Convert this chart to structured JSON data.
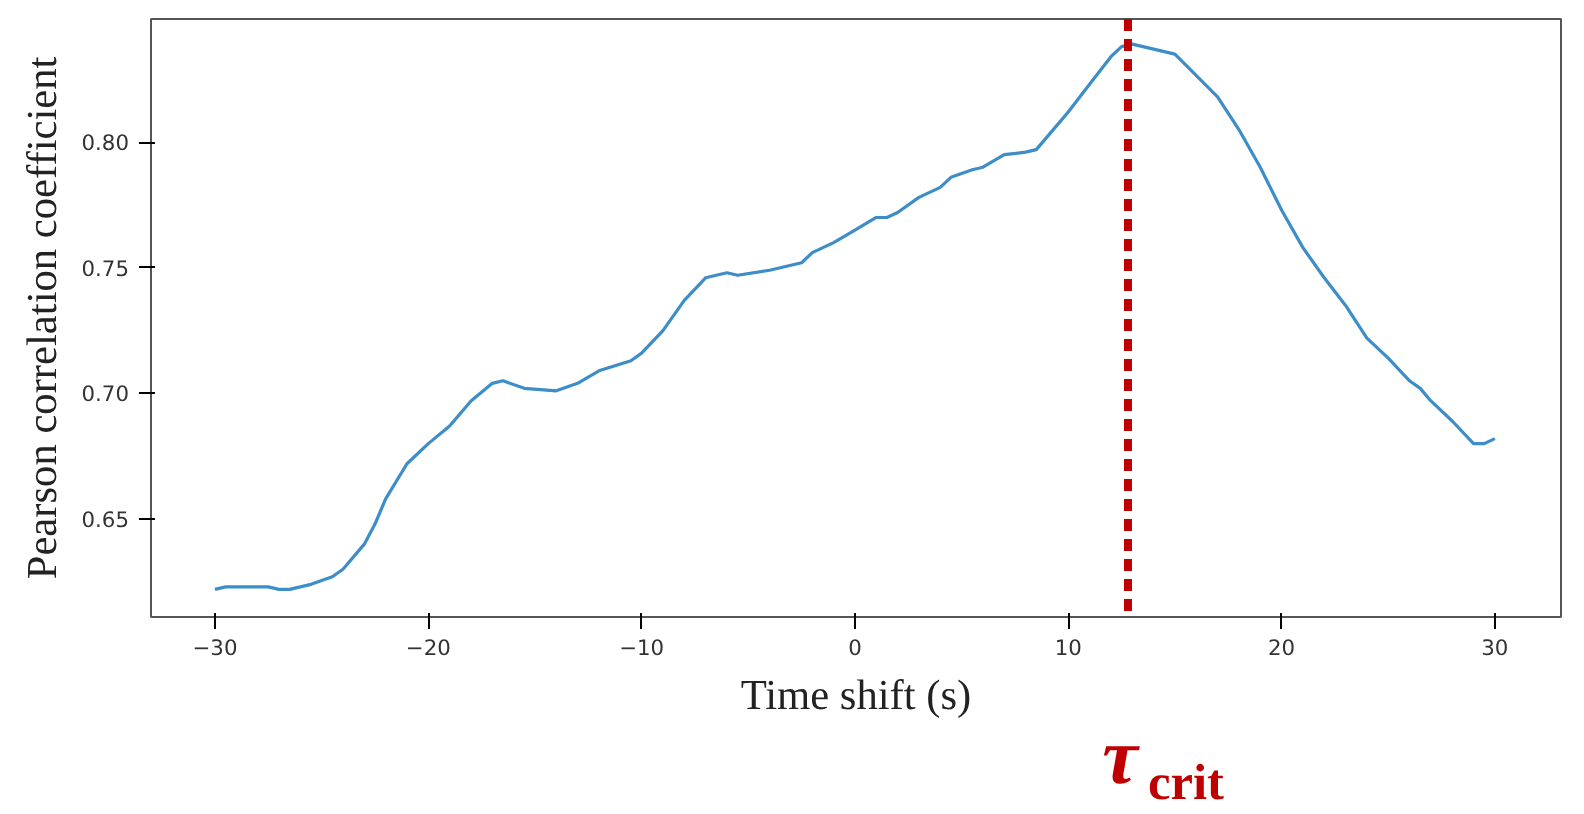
{
  "chart_data": {
    "type": "line",
    "xlabel": "Time shift (s)",
    "ylabel": "Pearson correlation coefficient",
    "xlim": [
      -33,
      33.1
    ],
    "ylim": [
      0.611,
      0.849
    ],
    "xticks": [
      {
        "value": -30,
        "label": "−30"
      },
      {
        "value": -20,
        "label": "−20"
      },
      {
        "value": -10,
        "label": "−10"
      },
      0,
      10,
      20,
      30
    ],
    "yticks": [
      {
        "value": 0.65,
        "label": "0.65"
      },
      {
        "value": 0.7,
        "label": "0.70"
      },
      {
        "value": 0.75,
        "label": "0.75"
      },
      {
        "value": 0.8,
        "label": "0.80"
      }
    ],
    "grid": false,
    "marker": "none",
    "line_style": "solid",
    "x": [
      -30,
      -29.5,
      -28,
      -27.5,
      -27,
      -26.5,
      -25.5,
      -24.5,
      -24,
      -23,
      -22.5,
      -22,
      -21,
      -20,
      -19,
      -18,
      -17,
      -16.5,
      -15.5,
      -14,
      -13,
      -12,
      -10.5,
      -10,
      -9,
      -8,
      -7,
      -6,
      -5.5,
      -4,
      -2.5,
      -2,
      -1,
      0,
      1,
      1.5,
      2,
      3,
      4,
      4.5,
      5.5,
      6,
      7,
      8,
      8.5,
      9,
      10,
      11,
      12,
      12.5,
      13,
      15,
      17,
      18,
      19,
      20,
      21,
      22,
      23,
      24,
      25,
      26,
      26.5,
      27,
      28,
      29,
      29.5,
      30
    ],
    "series": [
      {
        "color": "#3c8dc8",
        "values": [
          0.622,
          0.623,
          0.623,
          0.623,
          0.622,
          0.622,
          0.624,
          0.627,
          0.63,
          0.64,
          0.648,
          0.658,
          0.672,
          0.68,
          0.687,
          0.697,
          0.704,
          0.705,
          0.702,
          0.701,
          0.704,
          0.709,
          0.713,
          0.716,
          0.725,
          0.737,
          0.746,
          0.748,
          0.747,
          0.749,
          0.752,
          0.756,
          0.76,
          0.765,
          0.77,
          0.77,
          0.772,
          0.778,
          0.782,
          0.786,
          0.789,
          0.79,
          0.795,
          0.796,
          0.797,
          0.802,
          0.812,
          0.823,
          0.834,
          0.838,
          0.839,
          0.835,
          0.818,
          0.805,
          0.79,
          0.773,
          0.758,
          0.746,
          0.735,
          0.722,
          0.714,
          0.705,
          0.702,
          0.697,
          0.689,
          0.68,
          0.68,
          0.682
        ]
      }
    ],
    "ref_lines": [
      {
        "axis": "x",
        "value": 12.8,
        "label": "τ$_{crit}$",
        "color": "#c00000",
        "line_style": "dashed"
      }
    ]
  }
}
